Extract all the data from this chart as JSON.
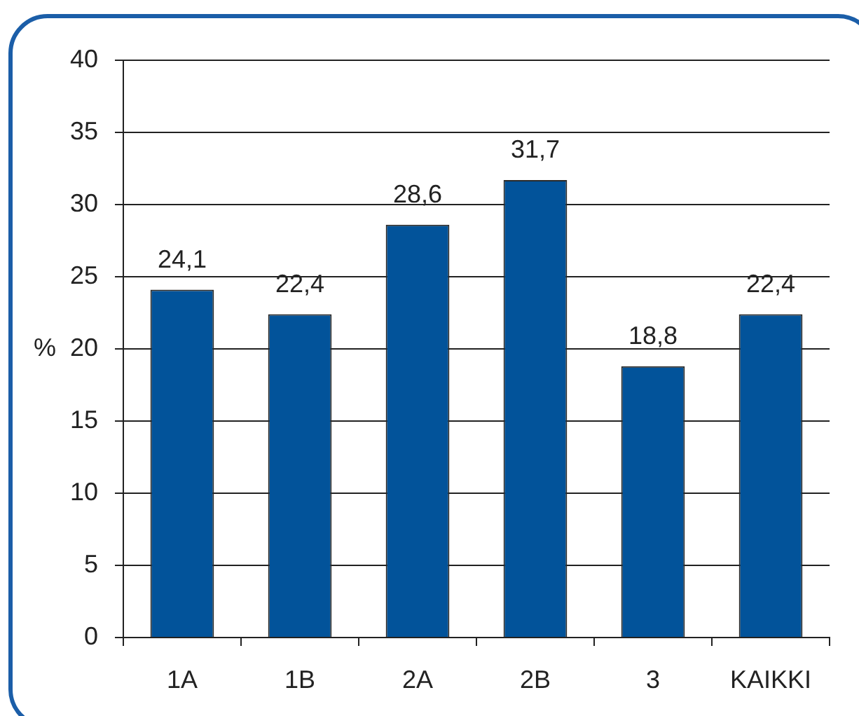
{
  "chart_data": {
    "type": "bar",
    "ylabel": "%",
    "categories": [
      "1A",
      "1B",
      "2A",
      "2B",
      "3",
      "KAIKKI"
    ],
    "values": [
      24.1,
      22.4,
      28.6,
      31.7,
      18.8,
      22.4
    ],
    "value_labels": [
      "24,1",
      "22,4",
      "28,6",
      "31,7",
      "18,8",
      "22,4"
    ],
    "color": "#02539a",
    "ylim": [
      0,
      40
    ],
    "yticks": [
      0,
      5,
      10,
      15,
      20,
      25,
      30,
      35,
      40
    ],
    "grid": "y"
  }
}
